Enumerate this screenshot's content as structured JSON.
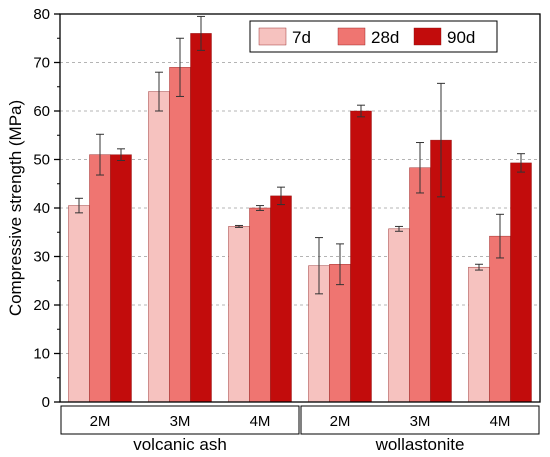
{
  "chart_data": {
    "type": "bar",
    "ylabel": "Compressive strength (MPa)",
    "ylim": [
      0,
      80
    ],
    "yticks": [
      0,
      10,
      20,
      30,
      40,
      50,
      60,
      70,
      80
    ],
    "grid": "dashed horizontal",
    "legend_position": "top-right",
    "categories": [
      "2M",
      "3M",
      "4M",
      "2M",
      "3M",
      "4M"
    ],
    "groups": [
      {
        "label": "volcanic ash",
        "categories": [
          "2M",
          "3M",
          "4M"
        ]
      },
      {
        "label": "wollastonite",
        "categories": [
          "2M",
          "3M",
          "4M"
        ]
      }
    ],
    "series": [
      {
        "name": "7d",
        "color": "#f6c2bf",
        "values": [
          40.5,
          64.0,
          36.2,
          28.1,
          35.7,
          27.8
        ],
        "errors": [
          1.5,
          4.0,
          0.2,
          5.8,
          0.5,
          0.6
        ]
      },
      {
        "name": "28d",
        "color": "#ef7571",
        "values": [
          51.0,
          69.0,
          40.0,
          28.4,
          48.3,
          34.2
        ],
        "errors": [
          4.2,
          6.0,
          0.5,
          4.2,
          5.2,
          4.5
        ]
      },
      {
        "name": "90d",
        "color": "#c20c0c",
        "values": [
          51.0,
          76.0,
          42.5,
          60.0,
          54.0,
          49.3
        ],
        "errors": [
          1.2,
          3.5,
          1.8,
          1.2,
          11.7,
          1.9
        ]
      }
    ]
  }
}
